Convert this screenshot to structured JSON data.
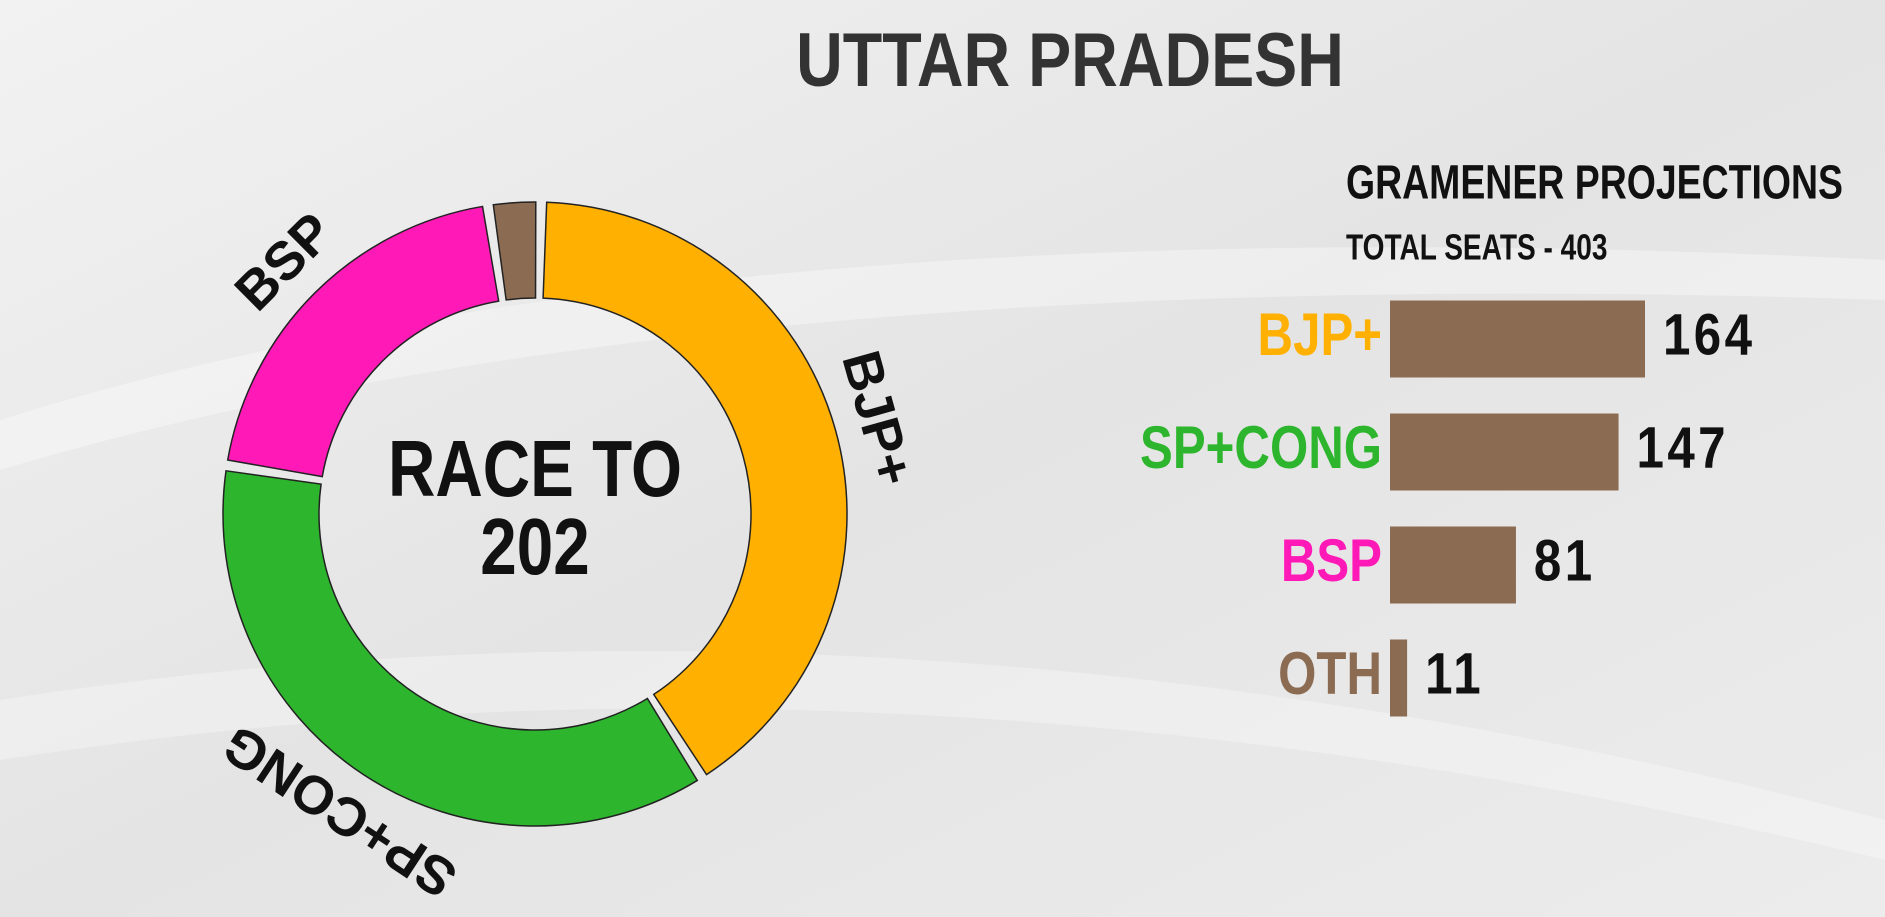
{
  "title": "UTTAR PRADESH",
  "chart_data": [
    {
      "type": "donut",
      "center_text": [
        "RACE TO",
        "202"
      ],
      "categories": [
        "BJP+",
        "SP+CONG",
        "BSP",
        null
      ],
      "values": [
        164,
        147,
        81,
        11
      ],
      "colors": [
        "#ffb000",
        "#2db52d",
        "#ff1ab8",
        "#8b6c52"
      ]
    },
    {
      "type": "bar",
      "title": "GRAMENER PROJECTIONS",
      "subtitle": "TOTAL SEATS - 403",
      "categories": [
        "BJP+",
        "SP+CONG",
        "BSP",
        "OTH"
      ],
      "category_colors": [
        "#ffb000",
        "#2db52d",
        "#ff1ab8",
        "#8b6c52"
      ],
      "values": [
        164,
        147,
        81,
        11
      ],
      "color": "#8b6c52"
    }
  ]
}
